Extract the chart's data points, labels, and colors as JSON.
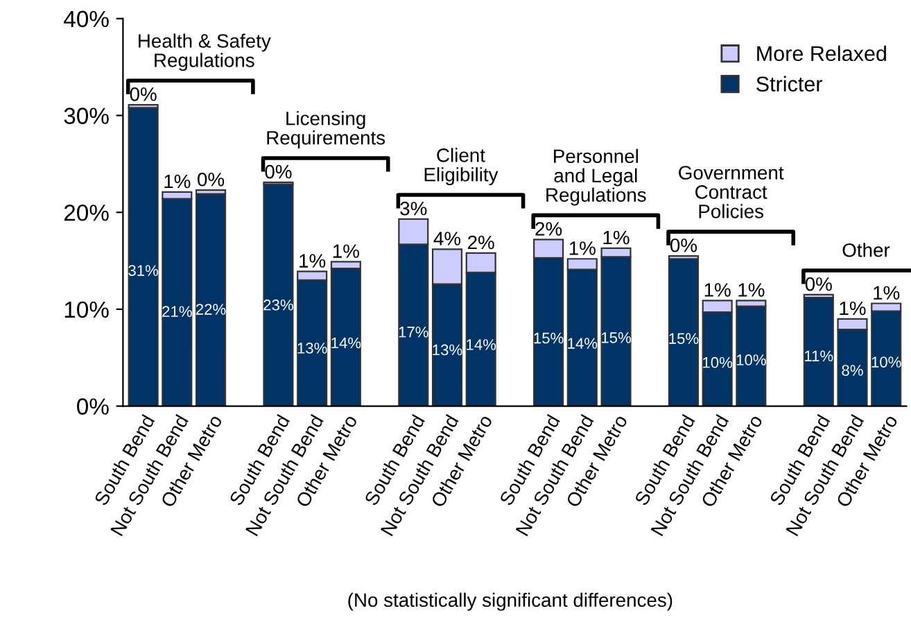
{
  "chart_data": {
    "type": "bar",
    "stacked": true,
    "categories": [
      "South Bend",
      "Not South Bend",
      "Other Metro",
      null,
      "South Bend",
      "Not South Bend",
      "Other Metro",
      null,
      "South Bend",
      "Not South Bend",
      "Other Metro",
      null,
      "South Bend",
      "Not South Bend",
      "Other Metro",
      null,
      "South Bend",
      "Not South Bend",
      "Other Metro",
      null,
      "South Bend",
      "Not South Bend",
      "Other Metro"
    ],
    "series": [
      {
        "name": "Stricter",
        "color": "#003366",
        "values": [
          30.8,
          21.4,
          21.9,
          null,
          22.9,
          13.0,
          14.2,
          null,
          16.7,
          12.6,
          13.8,
          null,
          15.3,
          14.1,
          15.4,
          null,
          15.2,
          9.7,
          10.3,
          null,
          11.2,
          7.9,
          9.8
        ],
        "value_labels": [
          "31%",
          "21%",
          "22%",
          null,
          "23%",
          "13%",
          "14%",
          null,
          "17%",
          "13%",
          "14%",
          null,
          "15%",
          "14%",
          "15%",
          null,
          "15%",
          "10%",
          "10%",
          null,
          "11%",
          "8%",
          "10%"
        ]
      },
      {
        "name": "More Relaxed",
        "color": "#ccccff",
        "values": [
          0.3,
          0.7,
          0.4,
          null,
          0.2,
          0.9,
          0.7,
          null,
          2.6,
          3.6,
          2.0,
          null,
          1.9,
          1.1,
          0.9,
          null,
          0.3,
          1.2,
          0.6,
          null,
          0.3,
          1.1,
          0.8
        ],
        "value_labels": [
          "0%",
          "1%",
          "0%",
          null,
          "0%",
          "1%",
          "1%",
          null,
          "3%",
          "4%",
          "2%",
          null,
          "2%",
          "1%",
          "1%",
          null,
          "0%",
          "1%",
          "1%",
          null,
          "0%",
          "1%",
          "1%"
        ]
      }
    ],
    "ylim": [
      0,
      40
    ],
    "yticks": [
      {
        "value": 0,
        "label": "0%"
      },
      {
        "value": 10,
        "label": "10%"
      },
      {
        "value": 20,
        "label": "20%"
      },
      {
        "value": 30,
        "label": "30%"
      },
      {
        "value": 40,
        "label": "40%"
      }
    ],
    "legend": "top right",
    "grid": false,
    "annotations": [
      "Health & Safety\nRegulations",
      "Licensing\nRequirements",
      "Client\nEligibility",
      "Personnel\nand Legal\nRegulations",
      "Government\nContract\nPolicies",
      "Other",
      "(No statistically significant differences)"
    ]
  }
}
